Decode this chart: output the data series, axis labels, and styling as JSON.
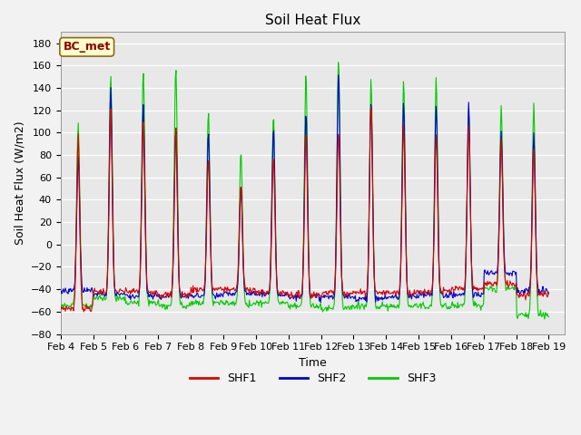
{
  "title": "Soil Heat Flux",
  "ylabel": "Soil Heat Flux (W/m2)",
  "xlabel": "Time",
  "ylim": [
    -80,
    190
  ],
  "yticks": [
    -80,
    -60,
    -40,
    -20,
    0,
    20,
    40,
    60,
    80,
    100,
    120,
    140,
    160,
    180
  ],
  "xtick_labels": [
    "Feb 4",
    "Feb 5",
    "Feb 6",
    "Feb 7",
    "Feb 8",
    "Feb 9",
    "Feb 10",
    "Feb 11",
    "Feb 12",
    "Feb 13",
    "Feb 14",
    "Feb 15",
    "Feb 16",
    "Feb 17",
    "Feb 18",
    "Feb 19"
  ],
  "colors": {
    "SHF1": "#dd0000",
    "SHF2": "#0000cc",
    "SHF3": "#00cc00"
  },
  "legend_label": "BC_met",
  "plot_bg": "#e8e8e8",
  "line_width": 0.8,
  "title_fontsize": 11,
  "tick_fontsize": 8,
  "label_fontsize": 9
}
